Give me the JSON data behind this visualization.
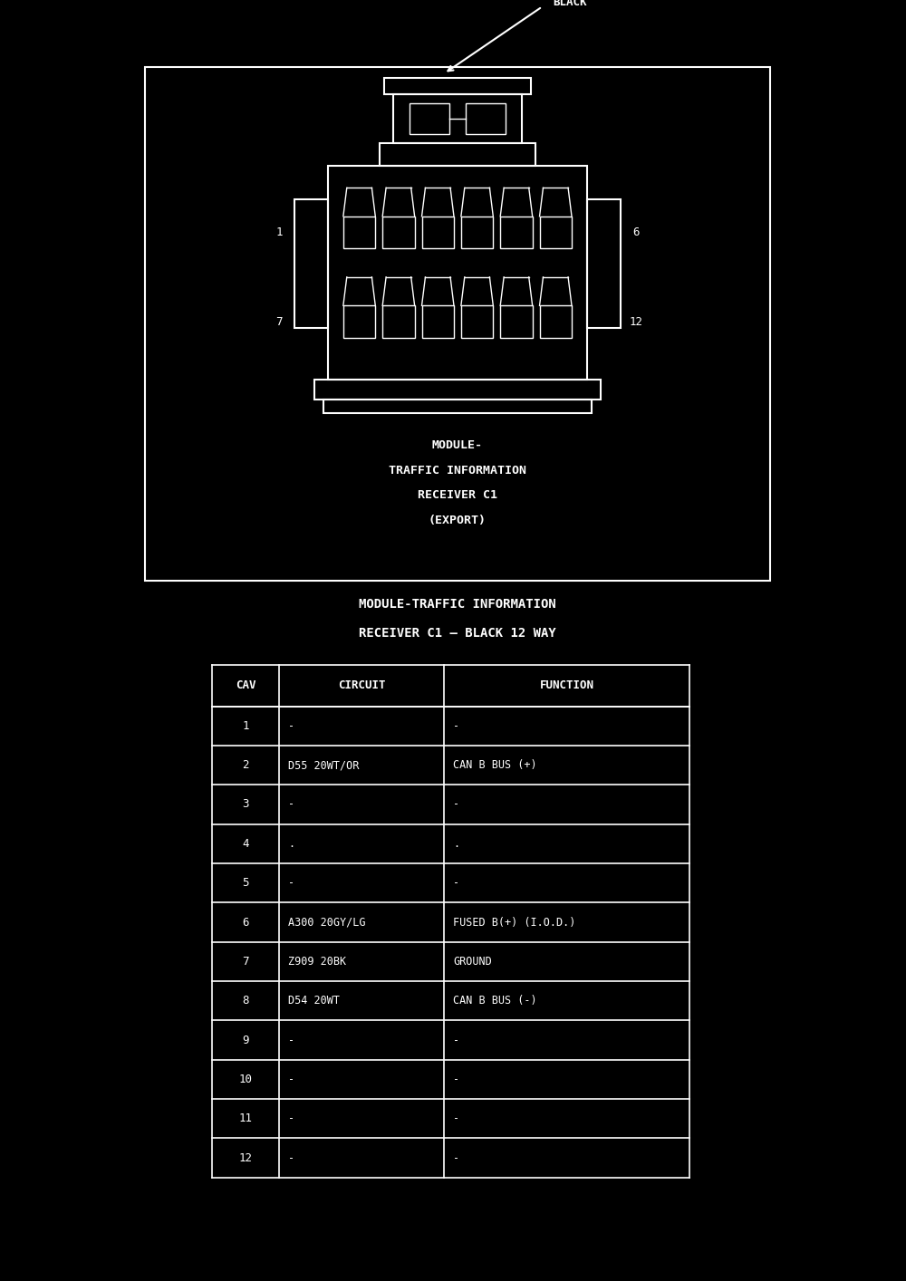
{
  "background_color": "#000000",
  "connector_color": "#ffffff",
  "border_color": "#ffffff",
  "text_color": "#ffffff",
  "table_bg": "#000000",
  "table_text_color": "#ffffff",
  "table_line_color": "#ffffff",
  "title_line1": "MODULE-",
  "title_line2": "TRAFFIC INFORMATION",
  "title_line3": "RECEIVER C1",
  "title_line4": "(EXPORT)",
  "subtitle_line1": "MODULE-TRAFFIC INFORMATION",
  "subtitle_line2": "RECEIVER C1 – BLACK 12 WAY",
  "label_black": "BLACK",
  "label_1": "1",
  "label_6": "6",
  "label_7": "7",
  "label_12": "12",
  "table_headers": [
    "CAV",
    "CIRCUIT",
    "FUNCTION"
  ],
  "table_rows": [
    [
      "1",
      "-",
      "-"
    ],
    [
      "2",
      "D55 20WT/OR",
      "CAN B BUS (+)"
    ],
    [
      "3",
      "-",
      "-"
    ],
    [
      "4",
      ".",
      "."
    ],
    [
      "5",
      "-",
      "-"
    ],
    [
      "6",
      "A300 20GY/LG",
      "FUSED B(+) (I.O.D.)"
    ],
    [
      "7",
      "Z909 20BK",
      "GROUND"
    ],
    [
      "8",
      "D54 20WT",
      "CAN B BUS (-)"
    ],
    [
      "9",
      "-",
      "-"
    ],
    [
      "10",
      "-",
      "-"
    ],
    [
      "11",
      "-",
      "-"
    ],
    [
      "12",
      "-",
      "-"
    ]
  ],
  "fig_width": 10.0,
  "fig_height": 14.14,
  "dpi": 100
}
